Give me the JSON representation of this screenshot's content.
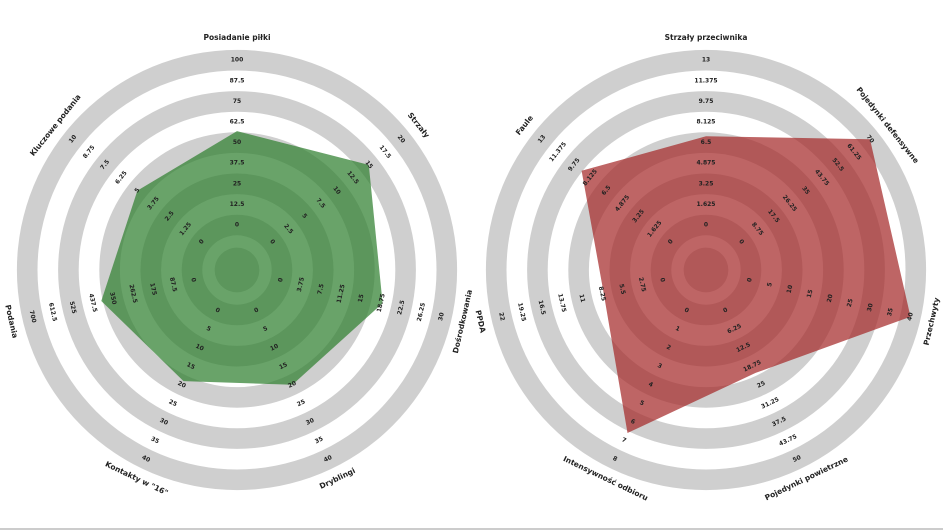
{
  "chart_data": [
    {
      "type": "radar",
      "color": "#2f7f2f",
      "categories": [
        "Posiadanie piłki",
        "Strzały",
        "Dośrodkowania",
        "Dryblingi",
        "Kontakty w \"16\"",
        "Podania",
        "Kluczowe podania"
      ],
      "values": [
        57,
        15,
        19,
        20,
        19,
        400,
        5
      ],
      "ranges": [
        [
          0,
          100
        ],
        [
          0,
          20
        ],
        [
          0,
          30
        ],
        [
          0,
          40
        ],
        [
          0,
          40
        ],
        [
          0,
          700
        ],
        [
          0,
          10
        ]
      ],
      "ticks": [
        [
          0,
          12.5,
          25,
          37.5,
          50,
          62.5,
          75,
          87.5,
          100
        ],
        [
          0,
          2.5,
          5,
          7.5,
          10,
          12.5,
          15,
          17.5,
          20
        ],
        [
          0,
          3.75,
          7.5,
          11.25,
          15,
          18.75,
          22.5,
          26.25,
          30
        ],
        [
          0,
          5,
          10,
          15,
          20,
          25,
          30,
          35,
          40
        ],
        [
          0,
          5,
          10,
          15,
          20,
          25,
          30,
          35,
          40
        ],
        [
          0,
          87.5,
          175,
          262.5,
          350,
          437.5,
          525,
          612.5,
          700
        ],
        [
          0,
          1.25,
          2.5,
          3.75,
          5,
          6.25,
          7.5,
          8.75,
          10
        ]
      ]
    },
    {
      "type": "radar",
      "color": "#a52a2a",
      "categories": [
        "Strzały przeciwnika",
        "Pojedynki defensywne",
        "Przechwyty",
        "Pojedynki powietrzne",
        "Intensywność odbioru",
        "PPDA",
        "Faule"
      ],
      "values": [
        7,
        70,
        40,
        21,
        6.6,
        8,
        9
      ],
      "ranges": [
        [
          0,
          13
        ],
        [
          0,
          70
        ],
        [
          0,
          40
        ],
        [
          0,
          50
        ],
        [
          0,
          8
        ],
        [
          0,
          22
        ],
        [
          0,
          13
        ]
      ],
      "ticks": [
        [
          0,
          1.625,
          3.25,
          4.875,
          6.5,
          8.125,
          9.75,
          11.375,
          13
        ],
        [
          0,
          8.75,
          17.5,
          26.25,
          35,
          43.75,
          52.5,
          61.25,
          70
        ],
        [
          0,
          5,
          10,
          15,
          20,
          25,
          30,
          35,
          40
        ],
        [
          0,
          6.25,
          12.5,
          18.75,
          25,
          31.25,
          37.5,
          43.75,
          50
        ],
        [
          0,
          1,
          2,
          3,
          4,
          5,
          6,
          7,
          8
        ],
        [
          0,
          2.75,
          5.5,
          8.25,
          11,
          13.75,
          16.5,
          19.25,
          22
        ],
        [
          0,
          1.625,
          3.25,
          4.875,
          6.5,
          8.125,
          9.75,
          11.375,
          13
        ]
      ]
    }
  ]
}
